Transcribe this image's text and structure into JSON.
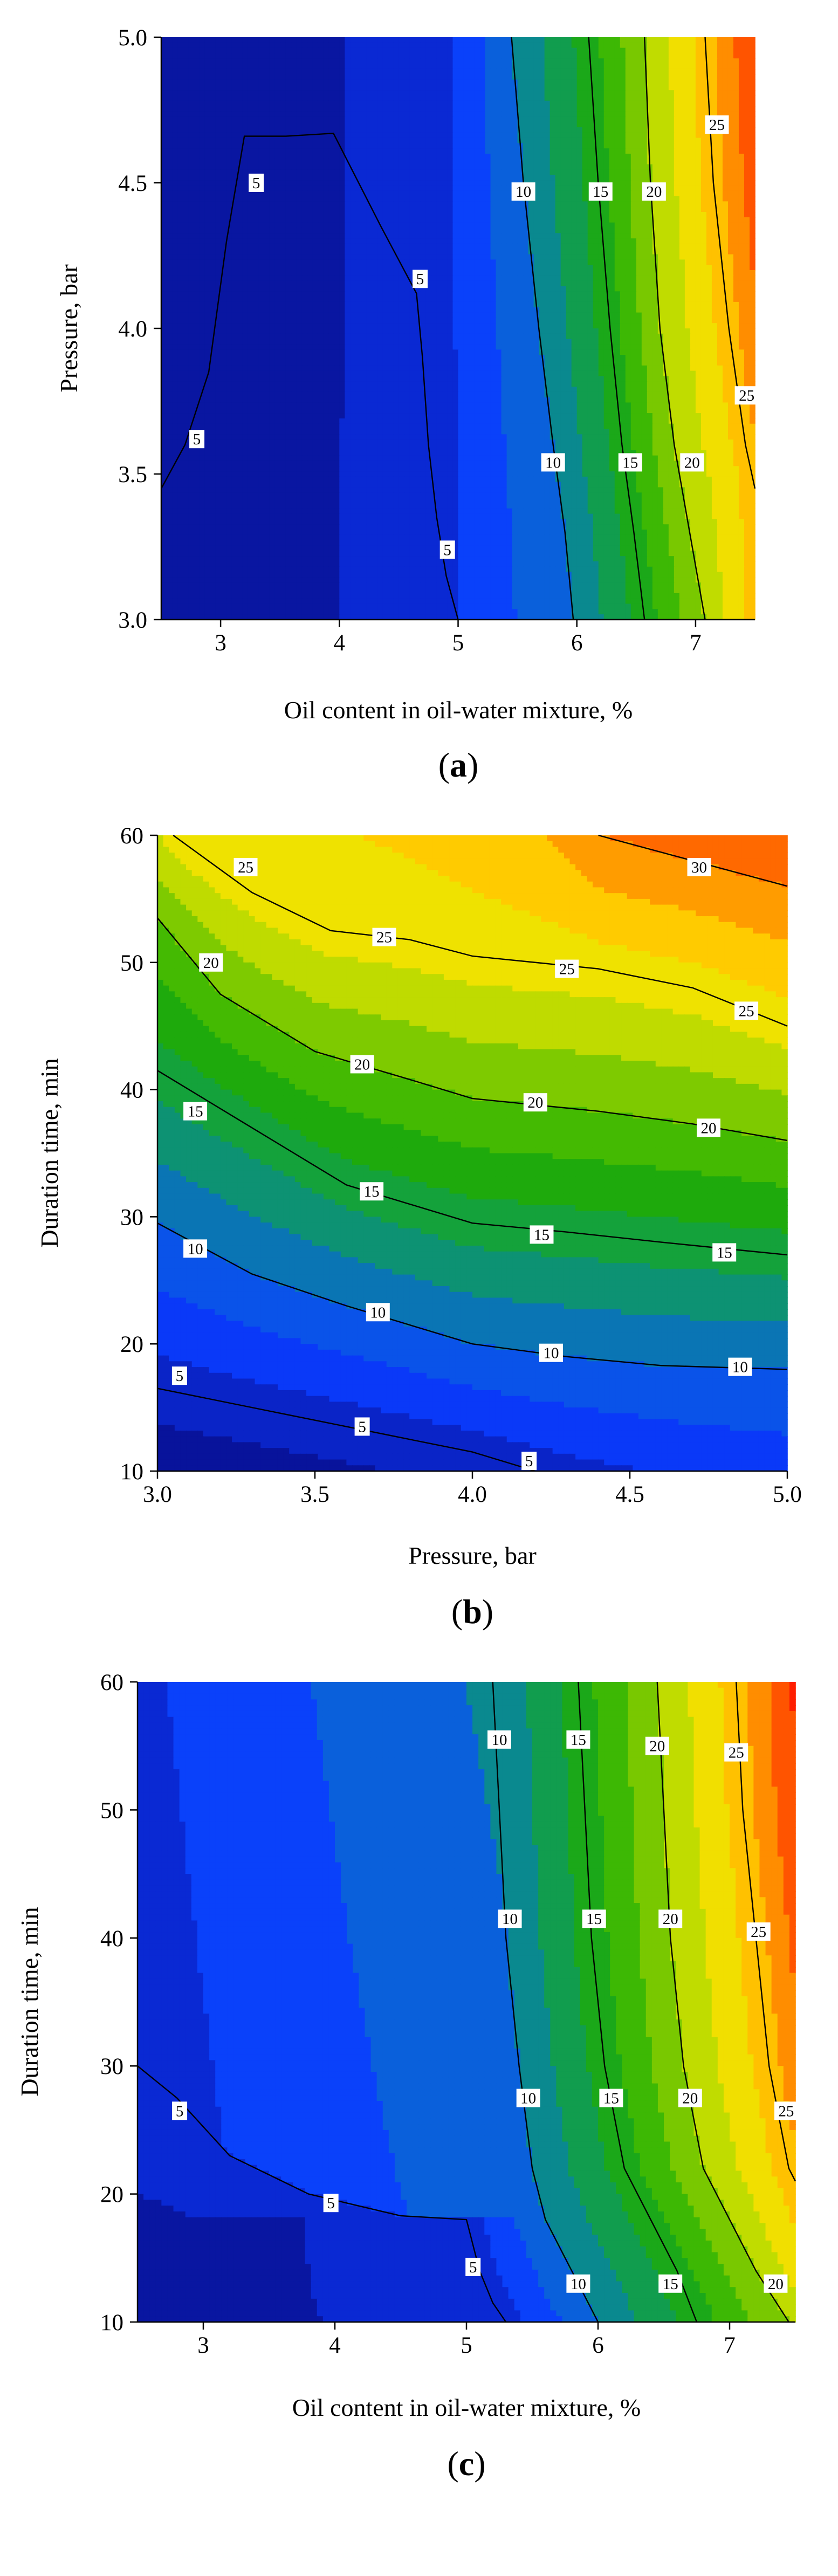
{
  "chart_data": [
    {
      "type": "contour",
      "panel_label": "(a)",
      "xlabel": "Oil content in oil-water mixture, %",
      "ylabel": "Pressure, bar",
      "xlim": [
        2.5,
        7.5
      ],
      "ylim": [
        3.0,
        5.0
      ],
      "xticks": [
        3,
        4,
        5,
        6,
        7
      ],
      "yticks": [
        3.0,
        3.5,
        4.0,
        4.5,
        5.0
      ],
      "xtick_labels": [
        "3",
        "4",
        "5",
        "6",
        "7"
      ],
      "ytick_labels": [
        "3.0",
        "3.5",
        "4.0",
        "4.5",
        "5.0"
      ],
      "levels": [
        5,
        10,
        15,
        20,
        25
      ],
      "contour_lines": [
        {
          "level": 5,
          "x": [
            2.5,
            2.7,
            2.9,
            3.05,
            3.2,
            3.55,
            3.95,
            4.35,
            4.65,
            4.7,
            4.75,
            4.82,
            4.9,
            5.0
          ],
          "y": [
            3.45,
            3.6,
            3.85,
            4.3,
            4.66,
            4.66,
            4.67,
            4.35,
            4.12,
            3.9,
            3.6,
            3.35,
            3.15,
            3.0
          ]
        },
        {
          "level": 10,
          "x": [
            5.45,
            5.55,
            5.68,
            5.8,
            5.9,
            5.97
          ],
          "y": [
            5.0,
            4.5,
            4.0,
            3.6,
            3.3,
            3.0
          ]
        },
        {
          "level": 15,
          "x": [
            6.1,
            6.18,
            6.28,
            6.38,
            6.48,
            6.57
          ],
          "y": [
            5.0,
            4.5,
            4.0,
            3.6,
            3.3,
            3.0
          ]
        },
        {
          "level": 20,
          "x": [
            6.57,
            6.62,
            6.7,
            6.82,
            6.95,
            7.08
          ],
          "y": [
            5.0,
            4.5,
            4.0,
            3.6,
            3.3,
            3.0
          ]
        },
        {
          "level": 25,
          "x": [
            7.08,
            7.15,
            7.28,
            7.42,
            7.5
          ],
          "y": [
            5.0,
            4.5,
            4.0,
            3.6,
            3.45
          ]
        }
      ],
      "contour_labels": [
        {
          "text": "5",
          "x": 3.3,
          "y": 4.5
        },
        {
          "text": "5",
          "x": 4.68,
          "y": 4.17
        },
        {
          "text": "5",
          "x": 2.8,
          "y": 3.62
        },
        {
          "text": "5",
          "x": 4.91,
          "y": 3.24
        },
        {
          "text": "10",
          "x": 5.55,
          "y": 4.47
        },
        {
          "text": "10",
          "x": 5.8,
          "y": 3.54
        },
        {
          "text": "15",
          "x": 6.2,
          "y": 4.47
        },
        {
          "text": "15",
          "x": 6.45,
          "y": 3.54
        },
        {
          "text": "20",
          "x": 6.65,
          "y": 4.47
        },
        {
          "text": "20",
          "x": 6.97,
          "y": 3.54
        },
        {
          "text": "25",
          "x": 7.18,
          "y": 4.7
        },
        {
          "text": "25",
          "x": 7.43,
          "y": 3.77
        }
      ]
    },
    {
      "type": "contour",
      "panel_label": "(b)",
      "xlabel": "Pressure, bar",
      "ylabel": "Duration time, min",
      "xlim": [
        3.0,
        5.0
      ],
      "ylim": [
        10,
        60
      ],
      "xticks": [
        3.0,
        3.5,
        4.0,
        4.5,
        5.0
      ],
      "yticks": [
        10,
        20,
        30,
        40,
        50,
        60
      ],
      "xtick_labels": [
        "3.0",
        "3.5",
        "4.0",
        "4.5",
        "5.0"
      ],
      "ytick_labels": [
        "10",
        "20",
        "30",
        "40",
        "50",
        "60"
      ],
      "levels": [
        5,
        10,
        15,
        20,
        25,
        30
      ],
      "contour_lines": [
        {
          "level": 5,
          "x": [
            3.0,
            3.5,
            3.8,
            4.0,
            4.2
          ],
          "y": [
            16.5,
            14.0,
            12.5,
            11.5,
            10.0
          ]
        },
        {
          "level": 10,
          "x": [
            3.0,
            3.3,
            3.6,
            4.0,
            4.3,
            4.6,
            5.0
          ],
          "y": [
            29.5,
            25.5,
            23.0,
            20.0,
            19.0,
            18.3,
            18.0
          ]
        },
        {
          "level": 15,
          "x": [
            3.0,
            3.3,
            3.6,
            4.0,
            4.3,
            4.6,
            5.0
          ],
          "y": [
            41.5,
            37.0,
            32.5,
            29.5,
            28.8,
            28.0,
            27.0
          ]
        },
        {
          "level": 20,
          "x": [
            3.0,
            3.2,
            3.5,
            3.8,
            4.0,
            4.4,
            4.7,
            5.0
          ],
          "y": [
            53.5,
            47.5,
            43.0,
            40.8,
            39.3,
            38.3,
            37.3,
            36.0
          ]
        },
        {
          "level": 25,
          "x": [
            3.05,
            3.3,
            3.55,
            3.8,
            4.0,
            4.4,
            4.7,
            5.0
          ],
          "y": [
            60.0,
            55.5,
            52.5,
            51.8,
            50.5,
            49.5,
            48.0,
            45.0
          ]
        },
        {
          "level": 30,
          "x": [
            4.4,
            4.7,
            5.0
          ],
          "y": [
            60.0,
            58.0,
            56.0
          ]
        }
      ],
      "contour_labels": [
        {
          "text": "25",
          "x": 3.28,
          "y": 57.5
        },
        {
          "text": "25",
          "x": 3.72,
          "y": 52.0
        },
        {
          "text": "25",
          "x": 4.3,
          "y": 49.5
        },
        {
          "text": "25",
          "x": 4.87,
          "y": 46.2
        },
        {
          "text": "30",
          "x": 4.72,
          "y": 57.5
        },
        {
          "text": "20",
          "x": 3.17,
          "y": 50.0
        },
        {
          "text": "20",
          "x": 3.65,
          "y": 42.0
        },
        {
          "text": "20",
          "x": 4.2,
          "y": 39.0
        },
        {
          "text": "20",
          "x": 4.75,
          "y": 37.0
        },
        {
          "text": "15",
          "x": 3.12,
          "y": 38.3
        },
        {
          "text": "15",
          "x": 3.68,
          "y": 32.0
        },
        {
          "text": "15",
          "x": 4.22,
          "y": 28.6
        },
        {
          "text": "15",
          "x": 4.8,
          "y": 27.2
        },
        {
          "text": "10",
          "x": 3.12,
          "y": 27.5
        },
        {
          "text": "10",
          "x": 3.7,
          "y": 22.5
        },
        {
          "text": "10",
          "x": 4.25,
          "y": 19.3
        },
        {
          "text": "10",
          "x": 4.85,
          "y": 18.2
        },
        {
          "text": "5",
          "x": 3.07,
          "y": 17.5
        },
        {
          "text": "5",
          "x": 3.65,
          "y": 13.5
        },
        {
          "text": "5",
          "x": 4.18,
          "y": 10.8
        }
      ]
    },
    {
      "type": "contour",
      "panel_label": "(c)",
      "xlabel": "Oil content in oil-water mixture, %",
      "ylabel": "Duration time, min",
      "xlim": [
        2.5,
        7.5
      ],
      "ylim": [
        10,
        60
      ],
      "xticks": [
        3,
        4,
        5,
        6,
        7
      ],
      "yticks": [
        10,
        20,
        30,
        40,
        50,
        60
      ],
      "xtick_labels": [
        "3",
        "4",
        "5",
        "6",
        "7"
      ],
      "ytick_labels": [
        "10",
        "20",
        "30",
        "40",
        "50",
        "60"
      ],
      "levels": [
        5,
        10,
        15,
        20,
        25
      ],
      "contour_lines": [
        {
          "level": 5,
          "x": [
            2.5,
            2.8,
            3.2,
            3.8,
            4.5,
            5.0,
            5.1,
            5.2,
            5.3
          ],
          "y": [
            30.0,
            27.5,
            23.0,
            20.0,
            18.3,
            18.0,
            14.0,
            11.5,
            10.0
          ]
        },
        {
          "level": 10,
          "x": [
            5.2,
            5.25,
            5.3,
            5.4,
            5.5,
            5.6,
            5.8,
            6.0
          ],
          "y": [
            60.0,
            50.0,
            40.0,
            30.0,
            22.0,
            18.0,
            14.0,
            10.0
          ]
        },
        {
          "level": 15,
          "x": [
            5.85,
            5.9,
            5.95,
            6.05,
            6.2,
            6.4,
            6.6,
            6.75
          ],
          "y": [
            60.0,
            50.0,
            40.0,
            30.0,
            22.0,
            18.0,
            14.0,
            10.0
          ]
        },
        {
          "level": 20,
          "x": [
            6.45,
            6.5,
            6.55,
            6.65,
            6.8,
            7.0,
            7.2,
            7.45
          ],
          "y": [
            60.0,
            50.0,
            40.0,
            30.0,
            22.0,
            18.0,
            14.0,
            10.0
          ]
        },
        {
          "level": 25,
          "x": [
            7.05,
            7.1,
            7.2,
            7.3,
            7.45,
            7.5
          ],
          "y": [
            60.0,
            50.0,
            40.0,
            30.0,
            22.0,
            21.0
          ]
        }
      ],
      "contour_labels": [
        {
          "text": "10",
          "x": 5.25,
          "y": 55.5
        },
        {
          "text": "10",
          "x": 5.33,
          "y": 41.5
        },
        {
          "text": "10",
          "x": 5.47,
          "y": 27.5
        },
        {
          "text": "10",
          "x": 5.85,
          "y": 13.0
        },
        {
          "text": "15",
          "x": 5.85,
          "y": 55.5
        },
        {
          "text": "15",
          "x": 5.97,
          "y": 41.5
        },
        {
          "text": "15",
          "x": 6.1,
          "y": 27.5
        },
        {
          "text": "15",
          "x": 6.55,
          "y": 13.0
        },
        {
          "text": "20",
          "x": 6.45,
          "y": 55.0
        },
        {
          "text": "20",
          "x": 6.55,
          "y": 41.5
        },
        {
          "text": "20",
          "x": 6.7,
          "y": 27.5
        },
        {
          "text": "20",
          "x": 7.35,
          "y": 13.0
        },
        {
          "text": "25",
          "x": 7.05,
          "y": 54.5
        },
        {
          "text": "25",
          "x": 7.22,
          "y": 40.5
        },
        {
          "text": "25",
          "x": 7.43,
          "y": 26.5
        },
        {
          "text": "5",
          "x": 2.82,
          "y": 26.5
        },
        {
          "text": "5",
          "x": 3.97,
          "y": 19.3
        },
        {
          "text": "5",
          "x": 5.05,
          "y": 14.3
        }
      ]
    }
  ],
  "colors": {
    "contour_scale": [
      "#1d1875",
      "#080f8e",
      "#0a22c4",
      "#0a3cff",
      "#0a5de0",
      "#0a8a8c",
      "#12a045",
      "#1eaa0c",
      "#4cbe00",
      "#9ad000",
      "#e8e800",
      "#ffd200",
      "#ff9900",
      "#ff5a00",
      "#ff1e00"
    ]
  }
}
